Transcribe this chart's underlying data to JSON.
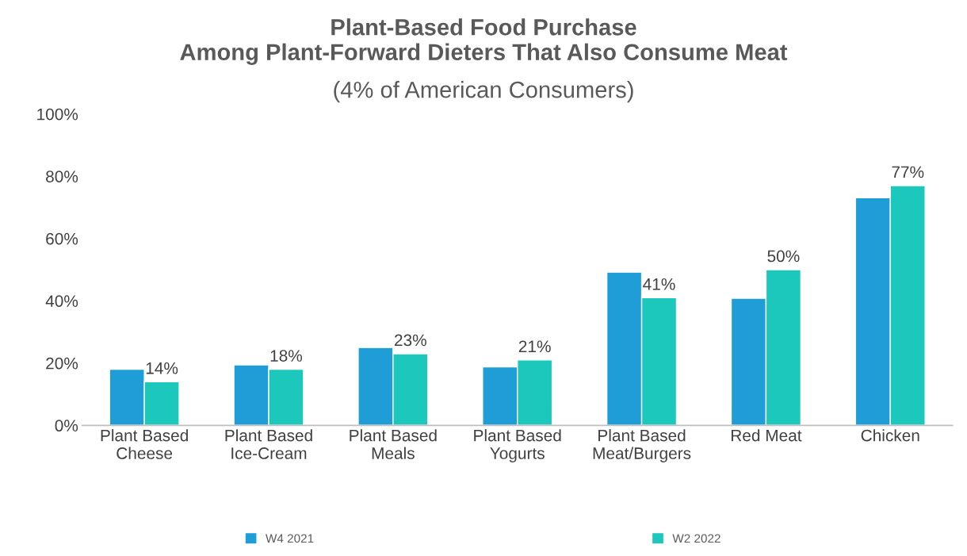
{
  "chart_data": {
    "type": "bar",
    "title": "Plant-Based Food Purchase\nAmong Plant-Forward Dieters That Also Consume Meat",
    "subtitle": "(4% of American Consumers)",
    "categories": [
      "Plant Based\nCheese",
      "Plant Based\nIce-Cream",
      "Plant Based\nMeals",
      "Plant Based\nYogurts",
      "Plant Based\nMeat/Burgers",
      "Red Meat",
      "Chicken"
    ],
    "series": [
      {
        "name": "W4 2021",
        "color": "#1f9dd6",
        "values": [
          18,
          19.4,
          25,
          18.8,
          49.2,
          40.8,
          73.1
        ]
      },
      {
        "name": "W2 2022",
        "color": "#1cc7bb",
        "values": [
          14,
          18,
          23,
          21,
          41,
          50,
          77
        ],
        "value_labels": [
          "14%",
          "18%",
          "23%",
          "21%",
          "41%",
          "50%",
          "77%"
        ]
      }
    ],
    "ylim": [
      0,
      100
    ],
    "yticks": [
      {
        "value": 0,
        "label": "0%"
      },
      {
        "value": 20,
        "label": "20%"
      },
      {
        "value": 40,
        "label": "40%"
      },
      {
        "value": 60,
        "label": "60%"
      },
      {
        "value": 80,
        "label": "80%"
      },
      {
        "value": 100,
        "label": "100%"
      }
    ],
    "grid": false,
    "legend": "bottom"
  }
}
